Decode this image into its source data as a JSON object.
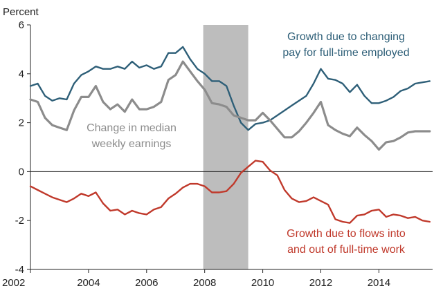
{
  "chart_data": {
    "type": "line",
    "ylabel": "Percent",
    "xlim": [
      2002,
      2015.85
    ],
    "ylim": [
      -4,
      6
    ],
    "x_ticks": [
      2002,
      2004,
      2006,
      2008,
      2010,
      2012,
      2014
    ],
    "y_ticks": [
      6,
      4,
      2,
      0,
      -2,
      -4
    ],
    "recession": {
      "start": 2007.95,
      "end": 2009.5
    },
    "colors": {
      "full_time_pay": "#2e5f78",
      "median_weekly": "#8c8c8c",
      "flows": "#c0392b",
      "recession": "#bdbdbd",
      "zero_line": "#222222"
    },
    "series": [
      {
        "name": "Growth due to changing pay for full-time employed",
        "key": "full_time_pay",
        "annotation": [
          "Growth due to changing",
          "pay for full-time  employed"
        ],
        "x": [
          2002,
          2002.25,
          2002.5,
          2002.75,
          2003,
          2003.25,
          2003.5,
          2003.75,
          2004,
          2004.25,
          2004.5,
          2004.75,
          2005,
          2005.25,
          2005.5,
          2005.75,
          2006,
          2006.25,
          2006.5,
          2006.75,
          2007,
          2007.25,
          2007.5,
          2007.75,
          2008,
          2008.25,
          2008.5,
          2008.75,
          2009,
          2009.25,
          2009.5,
          2009.75,
          2010,
          2010.25,
          2010.5,
          2010.75,
          2011,
          2011.25,
          2011.5,
          2011.75,
          2012,
          2012.25,
          2012.5,
          2012.75,
          2013,
          2013.25,
          2013.5,
          2013.75,
          2014,
          2014.25,
          2014.5,
          2014.75,
          2015,
          2015.25,
          2015.5,
          2015.75
        ],
        "values": [
          3.5,
          3.6,
          3.1,
          2.9,
          3.0,
          2.95,
          3.6,
          3.95,
          4.1,
          4.3,
          4.2,
          4.2,
          4.3,
          4.2,
          4.5,
          4.25,
          4.35,
          4.2,
          4.3,
          4.85,
          4.85,
          5.1,
          4.6,
          4.2,
          4.0,
          3.7,
          3.7,
          3.5,
          2.7,
          2.0,
          1.7,
          1.95,
          2.0,
          2.1,
          2.3,
          2.5,
          2.7,
          2.9,
          3.1,
          3.6,
          4.2,
          3.8,
          3.75,
          3.6,
          3.25,
          3.55,
          3.1,
          2.8,
          2.8,
          2.9,
          3.05,
          3.3,
          3.4,
          3.6,
          3.65,
          3.7
        ]
      },
      {
        "name": "Change in median weekly earnings",
        "key": "median_weekly",
        "annotation": [
          "Change in median",
          "weekly earnings"
        ],
        "x": [
          2002,
          2002.25,
          2002.5,
          2002.75,
          2003,
          2003.25,
          2003.5,
          2003.75,
          2004,
          2004.25,
          2004.5,
          2004.75,
          2005,
          2005.25,
          2005.5,
          2005.75,
          2006,
          2006.25,
          2006.5,
          2006.75,
          2007,
          2007.25,
          2007.5,
          2007.75,
          2008,
          2008.25,
          2008.5,
          2008.75,
          2009,
          2009.25,
          2009.5,
          2009.75,
          2010,
          2010.25,
          2010.5,
          2010.75,
          2011,
          2011.25,
          2011.5,
          2011.75,
          2012,
          2012.25,
          2012.5,
          2012.75,
          2013,
          2013.25,
          2013.5,
          2013.75,
          2014,
          2014.25,
          2014.5,
          2014.75,
          2015,
          2015.25,
          2015.5,
          2015.75
        ],
        "values": [
          2.95,
          2.85,
          2.2,
          1.9,
          1.8,
          1.7,
          2.5,
          3.05,
          3.05,
          3.5,
          2.85,
          2.55,
          2.75,
          2.45,
          2.95,
          2.55,
          2.55,
          2.65,
          2.85,
          3.75,
          3.95,
          4.5,
          4.1,
          3.7,
          3.35,
          2.8,
          2.75,
          2.65,
          2.3,
          2.2,
          2.1,
          2.1,
          2.4,
          2.1,
          1.75,
          1.4,
          1.4,
          1.65,
          2.0,
          2.4,
          2.85,
          1.9,
          1.7,
          1.55,
          1.45,
          1.8,
          1.5,
          1.25,
          0.9,
          1.2,
          1.25,
          1.4,
          1.6,
          1.65,
          1.65,
          1.65
        ]
      },
      {
        "name": "Growth due to flows into and out of full-time work",
        "key": "flows",
        "annotation": [
          "Growth due to flows into",
          "and out of full-time  work"
        ],
        "x": [
          2002,
          2002.25,
          2002.5,
          2002.75,
          2003,
          2003.25,
          2003.5,
          2003.75,
          2004,
          2004.25,
          2004.5,
          2004.75,
          2005,
          2005.25,
          2005.5,
          2005.75,
          2006,
          2006.25,
          2006.5,
          2006.75,
          2007,
          2007.25,
          2007.5,
          2007.75,
          2008,
          2008.25,
          2008.5,
          2008.75,
          2009,
          2009.25,
          2009.5,
          2009.75,
          2010,
          2010.25,
          2010.5,
          2010.75,
          2011,
          2011.25,
          2011.5,
          2011.75,
          2012,
          2012.25,
          2012.5,
          2012.75,
          2013,
          2013.25,
          2013.5,
          2013.75,
          2014,
          2014.25,
          2014.5,
          2014.75,
          2015,
          2015.25,
          2015.5,
          2015.75
        ],
        "values": [
          -0.6,
          -0.75,
          -0.9,
          -1.05,
          -1.15,
          -1.25,
          -1.1,
          -0.9,
          -1.0,
          -0.85,
          -1.3,
          -1.6,
          -1.55,
          -1.75,
          -1.6,
          -1.7,
          -1.75,
          -1.55,
          -1.45,
          -1.1,
          -0.9,
          -0.65,
          -0.5,
          -0.5,
          -0.6,
          -0.85,
          -0.85,
          -0.8,
          -0.5,
          -0.05,
          0.2,
          0.45,
          0.4,
          0.05,
          -0.15,
          -0.75,
          -1.1,
          -1.25,
          -1.2,
          -1.05,
          -1.2,
          -1.35,
          -1.95,
          -2.05,
          -2.1,
          -1.8,
          -1.75,
          -1.6,
          -1.55,
          -1.85,
          -1.75,
          -1.8,
          -1.9,
          -1.85,
          -2.0,
          -2.05
        ]
      }
    ]
  }
}
